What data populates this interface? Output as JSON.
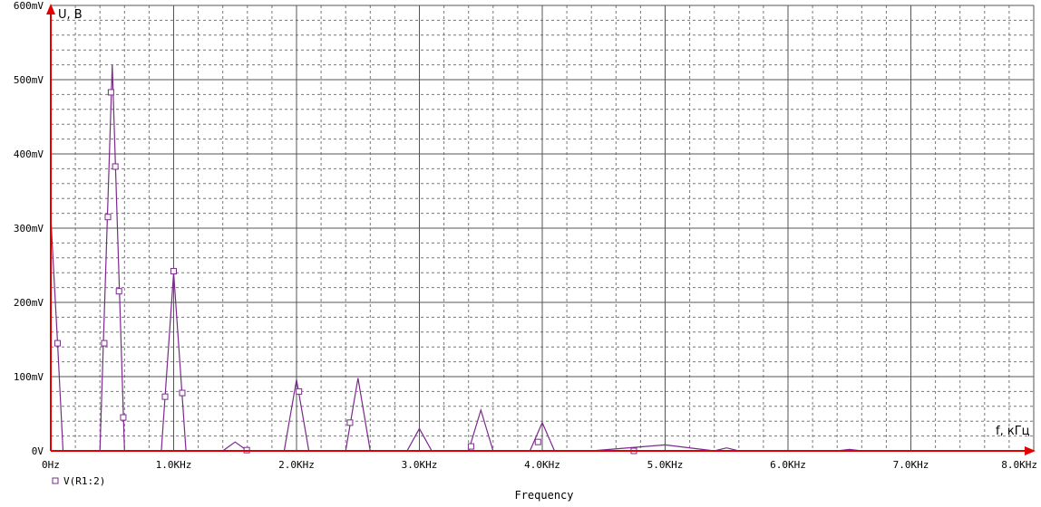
{
  "chart_data": {
    "type": "line",
    "title": "",
    "xlabel": "Frequency",
    "ylabel": "",
    "x_axis_note": "f, кГц",
    "y_axis_note": "U, B",
    "xlim": [
      0,
      8000
    ],
    "ylim": [
      0,
      600
    ],
    "x_ticks": [
      {
        "value": 0,
        "label": "0Hz"
      },
      {
        "value": 1000,
        "label": "1.0KHz"
      },
      {
        "value": 2000,
        "label": "2.0KHz"
      },
      {
        "value": 3000,
        "label": "3.0KHz"
      },
      {
        "value": 4000,
        "label": "4.0KHz"
      },
      {
        "value": 5000,
        "label": "5.0KHz"
      },
      {
        "value": 6000,
        "label": "6.0KHz"
      },
      {
        "value": 7000,
        "label": "7.0KHz"
      },
      {
        "value": 8000,
        "label": "8.0KHz"
      }
    ],
    "y_ticks": [
      {
        "value": 0,
        "label": "0V"
      },
      {
        "value": 100,
        "label": "100mV"
      },
      {
        "value": 200,
        "label": "200mV"
      },
      {
        "value": 300,
        "label": "300mV"
      },
      {
        "value": 400,
        "label": "400mV"
      },
      {
        "value": 500,
        "label": "500mV"
      },
      {
        "value": 600,
        "label": "600mV"
      }
    ],
    "grid": true,
    "legend": "bottom-left",
    "series": [
      {
        "name": "V(R1:2)",
        "color": "#7b2a8c",
        "marker": "square",
        "x": [
          0,
          55,
          100,
          400,
          500,
          600,
          900,
          1000,
          1100,
          1400,
          1500,
          1600,
          1900,
          2000,
          2100,
          2400,
          2500,
          2600,
          2900,
          3000,
          3100,
          3400,
          3500,
          3600,
          3900,
          4000,
          4100,
          4400,
          5000,
          5400,
          5500,
          5600,
          6400,
          6500,
          6600,
          8000
        ],
        "values": [
          315,
          145,
          0,
          0,
          520,
          0,
          0,
          240,
          0,
          0,
          12,
          0,
          0,
          96,
          0,
          0,
          98,
          0,
          0,
          30,
          0,
          0,
          55,
          0,
          0,
          38,
          0,
          0,
          8,
          0,
          4,
          0,
          0,
          2,
          0,
          0
        ]
      }
    ],
    "markers": [
      {
        "x": 55,
        "y": 145
      },
      {
        "x": 435,
        "y": 145
      },
      {
        "x": 465,
        "y": 315
      },
      {
        "x": 490,
        "y": 483
      },
      {
        "x": 525,
        "y": 383
      },
      {
        "x": 555,
        "y": 215
      },
      {
        "x": 590,
        "y": 45
      },
      {
        "x": 930,
        "y": 73
      },
      {
        "x": 1000,
        "y": 242
      },
      {
        "x": 1070,
        "y": 78
      },
      {
        "x": 1595,
        "y": 1
      },
      {
        "x": 2020,
        "y": 80
      },
      {
        "x": 2435,
        "y": 38
      },
      {
        "x": 3420,
        "y": 6
      },
      {
        "x": 3965,
        "y": 12
      },
      {
        "x": 4745,
        "y": 0
      }
    ]
  }
}
